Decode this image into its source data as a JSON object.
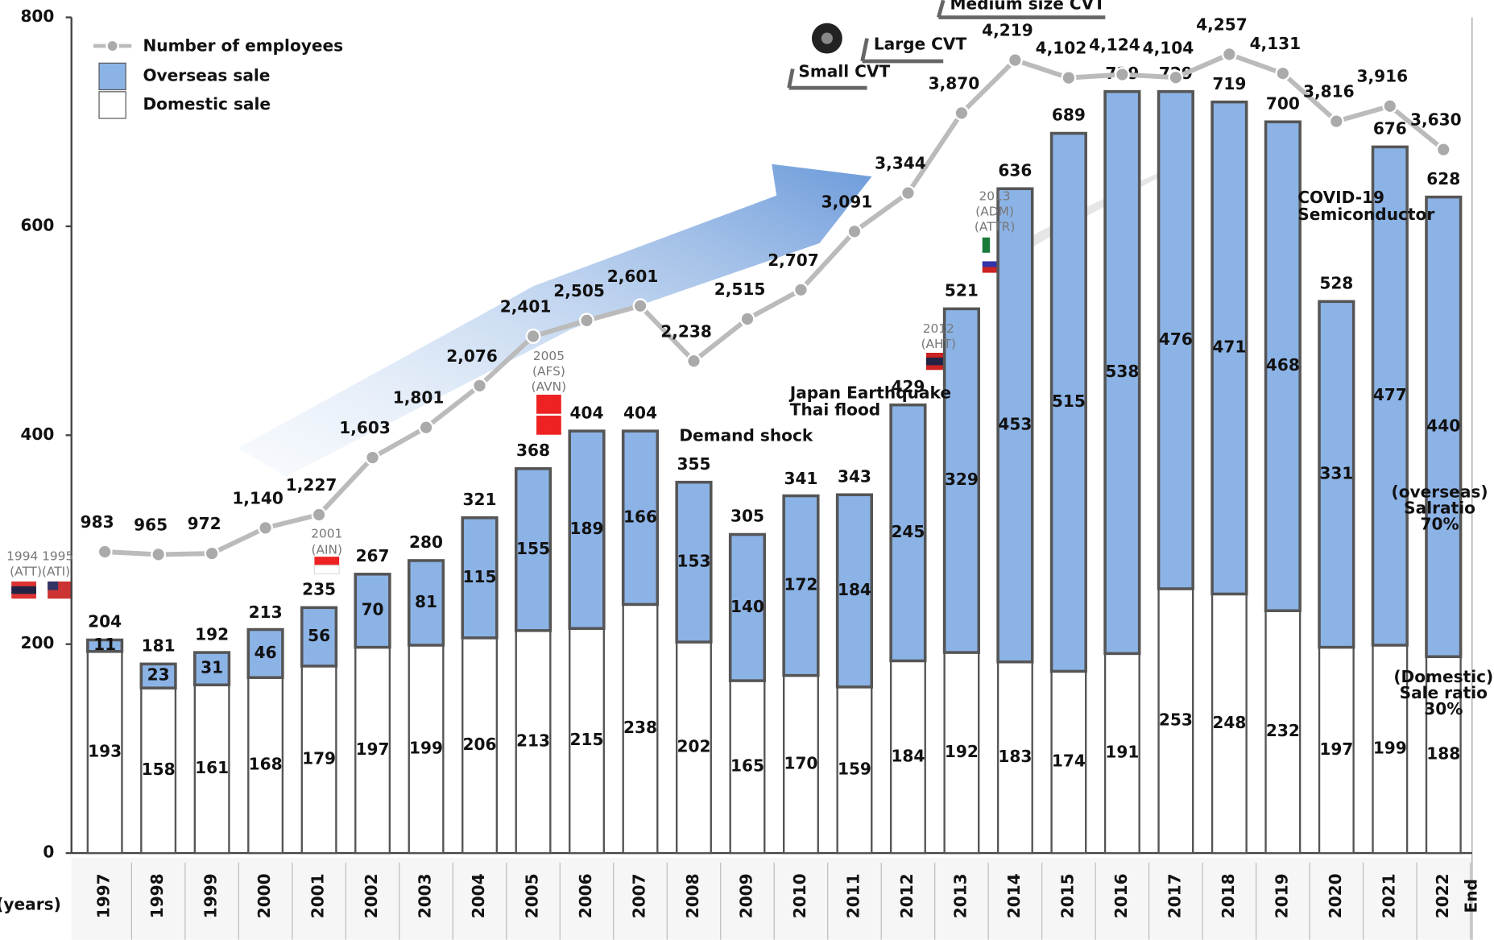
{
  "chart_data": {
    "type": "bar",
    "stacked": true,
    "categories": [
      "1997",
      "1998",
      "1999",
      "2000",
      "2001",
      "2002",
      "2003",
      "2004",
      "2005",
      "2006",
      "2007",
      "2008",
      "2009",
      "2010",
      "2011",
      "2012",
      "2013",
      "2014",
      "2015",
      "2016",
      "2017",
      "2018",
      "2019",
      "2020",
      "2021",
      "2022"
    ],
    "series": [
      {
        "name": "Domestic sale",
        "color": "#ffffff",
        "values": [
          193,
          158,
          161,
          168,
          179,
          197,
          199,
          206,
          213,
          215,
          238,
          202,
          165,
          170,
          159,
          184,
          192,
          183,
          174,
          191,
          253,
          248,
          232,
          197,
          199,
          188
        ]
      },
      {
        "name": "Overseas sale",
        "color": "#8cb3e6",
        "values": [
          11,
          23,
          31,
          46,
          56,
          70,
          81,
          115,
          155,
          189,
          166,
          153,
          140,
          172,
          184,
          245,
          329,
          453,
          515,
          538,
          476,
          471,
          468,
          331,
          477,
          440
        ]
      },
      {
        "name": "Number of employees",
        "type": "line",
        "axis": "y2",
        "color": "#bbbbbb",
        "values": [
          983,
          965,
          972,
          1140,
          1227,
          1603,
          1801,
          2076,
          2401,
          2505,
          2601,
          2238,
          2515,
          2707,
          3091,
          3344,
          3870,
          4219,
          4102,
          4124,
          4104,
          4257,
          4131,
          3816,
          3916,
          3630
        ],
        "value_labels": [
          "983",
          "965",
          "972",
          "1,140",
          "1,227",
          "1,603",
          "1,801",
          "2,076",
          "2,401",
          "2,505",
          "2,601",
          "2,238",
          "2,515",
          "2,707",
          "3,091",
          "3,344",
          "3,870",
          "4,219",
          "4,102",
          "4,124",
          "4,104",
          "4,257",
          "4,131",
          "3,816",
          "3,916",
          "3,630"
        ]
      }
    ],
    "totals": [
      204,
      181,
      192,
      213,
      235,
      267,
      280,
      321,
      368,
      404,
      404,
      355,
      305,
      341,
      343,
      429,
      521,
      636,
      689,
      729,
      729,
      719,
      700,
      528,
      676,
      628
    ],
    "ylim": [
      0,
      800
    ],
    "yticks": [
      0,
      200,
      400,
      600,
      800
    ],
    "y2lim": [
      -1000,
      4500
    ],
    "x_label": "(years)",
    "x_end_label": "End",
    "annotations": [
      "Demand shock",
      "Japan Earthquake",
      "Thai flood",
      "COVID-19",
      "Semiconductor",
      "Small CVT",
      "Large CVT",
      "Medium size CVT",
      "(overseas)",
      "Salratio",
      "70%",
      "(Domestic)",
      "Sale ratio",
      "30%",
      "1994 1995",
      "(ATT)(ATI)",
      "2001",
      "(AIN)",
      "2005",
      "(AFS)",
      "(AVN)",
      "2012",
      "(AHT)",
      "2013",
      "(ADM)",
      "(ATTR)"
    ]
  }
}
